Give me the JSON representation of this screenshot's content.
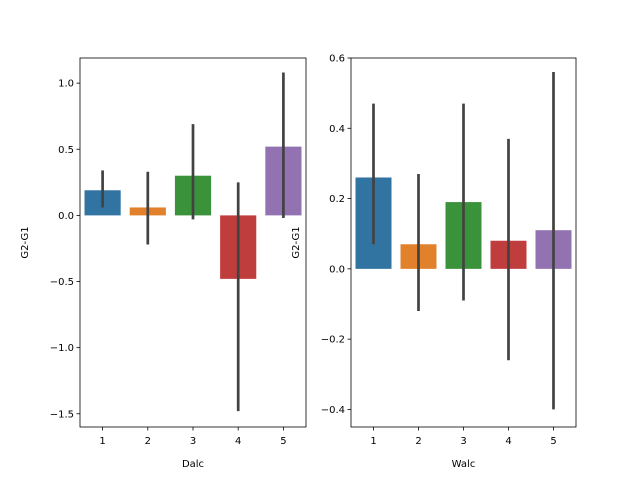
{
  "chart_data": [
    {
      "type": "bar",
      "xlabel": "Dalc",
      "ylabel": "G2-G1",
      "categories": [
        "1",
        "2",
        "3",
        "4",
        "5"
      ],
      "values": [
        0.19,
        0.06,
        0.3,
        -0.48,
        0.52
      ],
      "ci_low": [
        0.06,
        -0.22,
        -0.03,
        -1.48,
        -0.02
      ],
      "ci_high": [
        0.34,
        0.33,
        0.69,
        0.25,
        1.08
      ],
      "ylim": [
        -1.6,
        1.19
      ],
      "yticks": [
        -1.5,
        -1.0,
        -0.5,
        0.0,
        0.5,
        1.0
      ],
      "ytick_labels": [
        "−1.5",
        "−1.0",
        "−0.5",
        "0.0",
        "0.5",
        "1.0"
      ],
      "colors": [
        "#3274a1",
        "#e1812c",
        "#3a923a",
        "#c03d3e",
        "#9372b2"
      ],
      "grid": false,
      "legend": "none"
    },
    {
      "type": "bar",
      "xlabel": "Walc",
      "ylabel": "G2-G1",
      "categories": [
        "1",
        "2",
        "3",
        "4",
        "5"
      ],
      "values": [
        0.26,
        0.07,
        0.19,
        0.08,
        0.11
      ],
      "ci_low": [
        0.07,
        -0.12,
        -0.09,
        -0.26,
        -0.4
      ],
      "ci_high": [
        0.47,
        0.27,
        0.47,
        0.37,
        0.56
      ],
      "ylim": [
        -0.45,
        0.6
      ],
      "yticks": [
        -0.4,
        -0.2,
        0.0,
        0.2,
        0.4,
        0.6
      ],
      "ytick_labels": [
        "−0.4",
        "−0.2",
        "0.0",
        "0.2",
        "0.4",
        "0.6"
      ],
      "colors": [
        "#3274a1",
        "#e1812c",
        "#3a923a",
        "#c03d3e",
        "#9372b2"
      ],
      "grid": false,
      "legend": "none"
    }
  ]
}
